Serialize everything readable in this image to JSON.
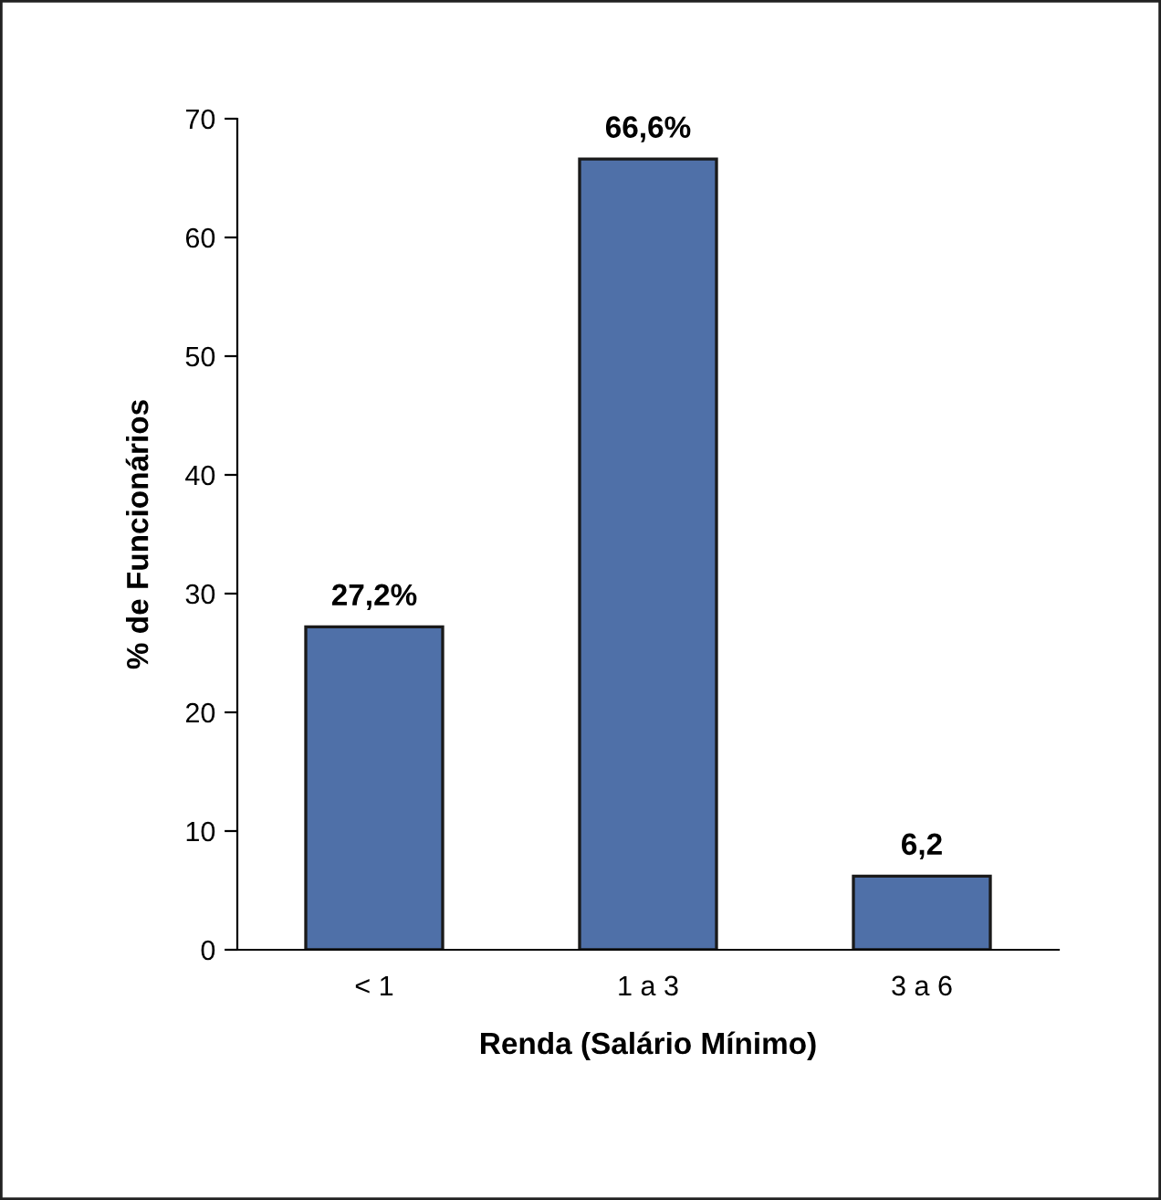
{
  "chart_data": {
    "type": "bar",
    "xlabel": "Renda (Salário Mínimo)",
    "ylabel": "% de Funcionários",
    "categories": [
      "< 1",
      "1 a 3",
      "3 a 6"
    ],
    "values": [
      27.2,
      66.6,
      6.2
    ],
    "value_labels": [
      "27,2%",
      "66,6%",
      "6,2"
    ],
    "color": "#4f70a8",
    "ylim": [
      0,
      70
    ],
    "yticks": [
      0,
      10,
      20,
      30,
      40,
      50,
      60,
      70
    ],
    "grid": false,
    "legend": false
  }
}
